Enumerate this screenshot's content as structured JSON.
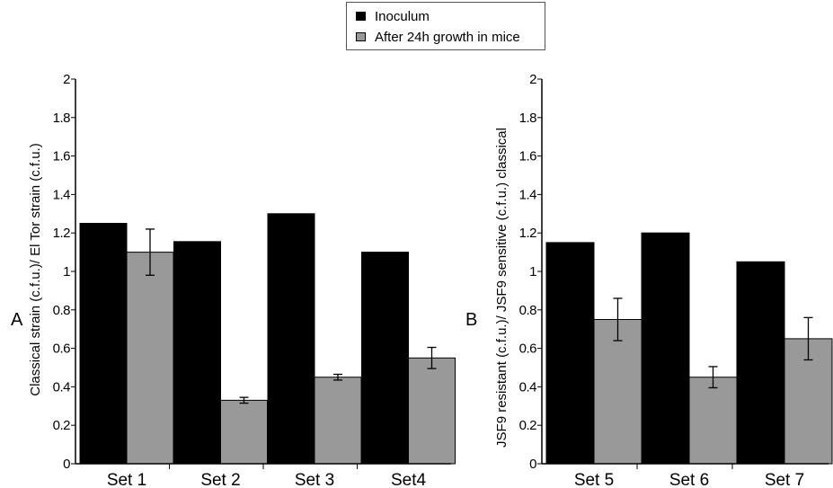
{
  "legend": {
    "inoculum_label": "Inoculum",
    "after_label": "After 24h growth in mice",
    "inoculum_color": "#000000",
    "after_color": "#999999"
  },
  "chart_data": [
    {
      "type": "bar",
      "panel_label": "A",
      "ylabel": "Classical strain (c.f.u.)/ El Tor strain (c.f.u.)",
      "xlabel": "",
      "ylim": [
        0,
        2
      ],
      "yticks": [
        "0",
        "0.2",
        "0.4",
        "0.6",
        "0.8",
        "1",
        "1.2",
        "1.4",
        "1.6",
        "1.8",
        "2"
      ],
      "categories": [
        "Set 1",
        "Set 2",
        "Set 3",
        "Set4"
      ],
      "series": [
        {
          "name": "Inoculum",
          "values": [
            1.25,
            1.155,
            1.3,
            1.1
          ],
          "errors": [
            null,
            null,
            null,
            null
          ]
        },
        {
          "name": "After 24h growth in mice",
          "values": [
            1.1,
            0.33,
            0.45,
            0.55
          ],
          "errors": [
            0.12,
            0.015,
            0.015,
            0.055
          ]
        }
      ]
    },
    {
      "type": "bar",
      "panel_label": "B",
      "ylabel": "JSF9 resistant (c.f.u.)/ JSF9 sensitive (c.f.u.) classical",
      "xlabel": "",
      "ylim": [
        0,
        2
      ],
      "yticks": [
        "0",
        "0.2",
        "0.4",
        "0.6",
        "0.8",
        "1",
        "1.2",
        "1.4",
        "1.6",
        "1.8",
        "2"
      ],
      "categories": [
        "Set 5",
        "Set 6",
        "Set 7"
      ],
      "series": [
        {
          "name": "Inoculum",
          "values": [
            1.15,
            1.2,
            1.05
          ],
          "errors": [
            null,
            null,
            null
          ]
        },
        {
          "name": "After 24h growth in mice",
          "values": [
            0.75,
            0.45,
            0.65
          ],
          "errors": [
            0.11,
            0.055,
            0.11
          ]
        }
      ]
    }
  ]
}
